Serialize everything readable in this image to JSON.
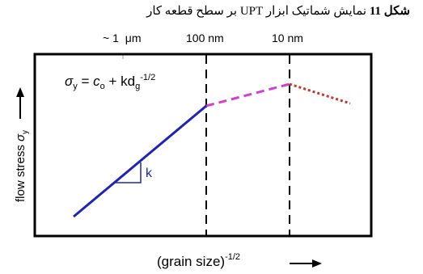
{
  "caption": {
    "label": "شکل 11",
    "text": "نمایش شماتیک ابزار UPT بر سطح قطعه کار"
  },
  "top_labels": {
    "scale_1": "~ 1",
    "scale_1_unit": "μm",
    "scale_2": "100 nm",
    "scale_3": "10 nm"
  },
  "equation": {
    "sigma": "σ",
    "sub_y": "y",
    "eq_mid": " = ",
    "c": "c",
    "sub_o": "o",
    "plus_k": " + kd",
    "sub_g": "g",
    "exp": "-1/2"
  },
  "slope_label": "k",
  "axes": {
    "y_label_text": "flow stress ",
    "y_label_sigma": "σ",
    "y_label_sub": "y",
    "x_label_text": "(grain size)",
    "x_label_exp": "-1/2"
  },
  "colors": {
    "solid_line": "#1f23b4",
    "dashed_segment": "#d23ed0",
    "dotted_segment": "#c0392b",
    "frame": "#000000"
  }
}
